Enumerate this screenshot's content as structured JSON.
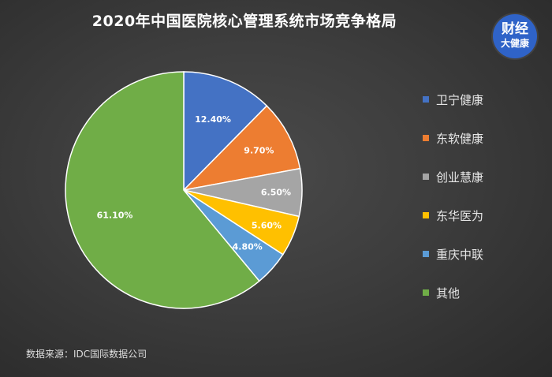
{
  "title": "2020年中国医院核心管理系统市场竞争格局",
  "logo": {
    "line1": "财经",
    "line2": "大健康"
  },
  "source": "数据来源：IDC国际数据公司",
  "chart_data": {
    "type": "pie",
    "title": "2020年中国医院核心管理系统市场竞争格局",
    "categories": [
      "卫宁健康",
      "东软健康",
      "创业慧康",
      "东华医为",
      "重庆中联",
      "其他"
    ],
    "values": [
      12.4,
      9.7,
      6.5,
      5.6,
      4.8,
      61.1
    ],
    "labels": [
      "12.40%",
      "9.70%",
      "6.50%",
      "5.60%",
      "4.80%",
      "61.10%"
    ],
    "colors": [
      "#4472c4",
      "#ed7d31",
      "#a5a5a5",
      "#ffc000",
      "#5b9bd5",
      "#70ad47"
    ],
    "legend": "right"
  }
}
